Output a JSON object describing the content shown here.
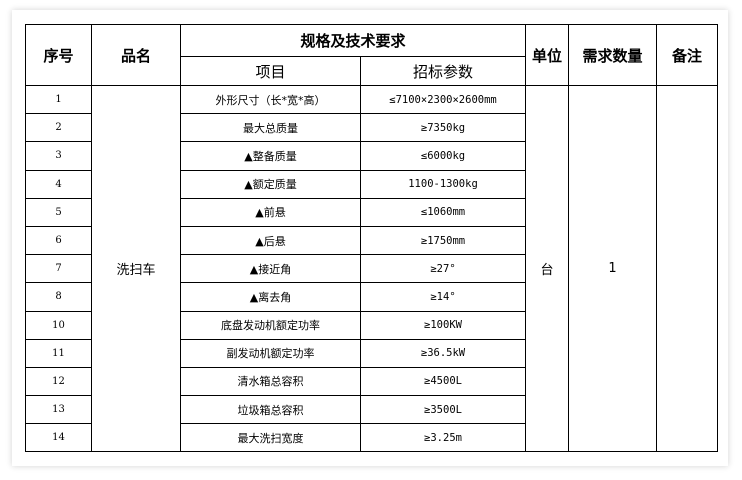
{
  "table": {
    "headers": {
      "seq": "序号",
      "name": "品名",
      "spec": "规格及技术要求",
      "item": "项目",
      "param": "招标参数",
      "unit": "单位",
      "qty": "需求数量",
      "note": "备注"
    },
    "product": "洗扫车",
    "unit": "台",
    "qty": "1",
    "note": "",
    "rows": [
      {
        "no": "1",
        "item": "外形尺寸（长*宽*高）",
        "param": "≤7100×2300×2600mm"
      },
      {
        "no": "2",
        "item": "最大总质量",
        "param": "≥7350kg"
      },
      {
        "no": "3",
        "item": "▲整备质量",
        "param": "≤6000kg"
      },
      {
        "no": "4",
        "item": "▲额定质量",
        "param": "1100-1300kg"
      },
      {
        "no": "5",
        "item": "▲前悬",
        "param": "≤1060mm"
      },
      {
        "no": "6",
        "item": "▲后悬",
        "param": "≥1750mm"
      },
      {
        "no": "7",
        "item": "▲接近角",
        "param": "≥27°"
      },
      {
        "no": "8",
        "item": "▲离去角",
        "param": "≥14°"
      },
      {
        "no": "10",
        "item": "底盘发动机额定功率",
        "param": "≥100KW"
      },
      {
        "no": "11",
        "item": "副发动机额定功率",
        "param": "≥36.5kW"
      },
      {
        "no": "12",
        "item": "清水箱总容积",
        "param": "≥4500L"
      },
      {
        "no": "13",
        "item": "垃圾箱总容积",
        "param": "≥3500L"
      },
      {
        "no": "14",
        "item": "最大洗扫宽度",
        "param": "≥3.25m"
      }
    ]
  }
}
